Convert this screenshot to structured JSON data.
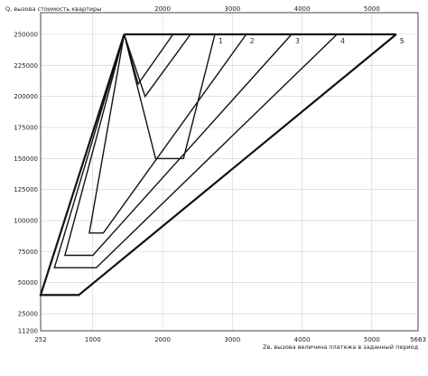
{
  "chart_data": {
    "type": "line",
    "ylabel": "Q, вызова стоимость квартиры",
    "xlabel": "Zв, вызова величина платежа в заданный период",
    "xlim": [
      252,
      5663
    ],
    "ylim": [
      11200,
      250000
    ],
    "bottom_x_ticks": [
      "252",
      "1000",
      "2000",
      "3000",
      "4000",
      "5000",
      "5663"
    ],
    "bottom_x_tick_values": [
      252,
      1000,
      2000,
      3000,
      4000,
      5000,
      5663
    ],
    "top_x_ticks": [
      "2000",
      "3000",
      "4000",
      "5000"
    ],
    "top_x_tick_values": [
      2000,
      3000,
      4000,
      5000
    ],
    "y_ticks": [
      "250000",
      "225000",
      "200000",
      "175000",
      "150000",
      "125000",
      "100000",
      "75000",
      "50000",
      "25000",
      "11200"
    ],
    "y_tick_values": [
      250000,
      225000,
      200000,
      175000,
      150000,
      125000,
      100000,
      75000,
      50000,
      25000,
      11200
    ],
    "grid": true,
    "series": [
      {
        "name": "1",
        "x": [
          1450,
          1900,
          2300,
          2750
        ],
        "y": [
          250000,
          150000,
          150000,
          250000
        ]
      },
      {
        "name": "2",
        "x": [
          1450,
          950,
          1150,
          3200
        ],
        "y": [
          250000,
          90000,
          90000,
          250000
        ]
      },
      {
        "name": "3",
        "x": [
          1450,
          600,
          1000,
          3850
        ],
        "y": [
          250000,
          72000,
          72000,
          250000
        ]
      },
      {
        "name": "4",
        "x": [
          1450,
          450,
          1050,
          4500
        ],
        "y": [
          250000,
          62000,
          62000,
          250000
        ]
      },
      {
        "name": "5",
        "x": [
          1450,
          252,
          800,
          5350
        ],
        "y": [
          250000,
          40000,
          40000,
          250000
        ]
      },
      {
        "x": [
          1450,
          1750,
          2400
        ],
        "y": [
          250000,
          200000,
          250000
        ]
      },
      {
        "x": [
          1450,
          1650,
          2150
        ],
        "y": [
          250000,
          210000,
          250000
        ]
      }
    ]
  }
}
